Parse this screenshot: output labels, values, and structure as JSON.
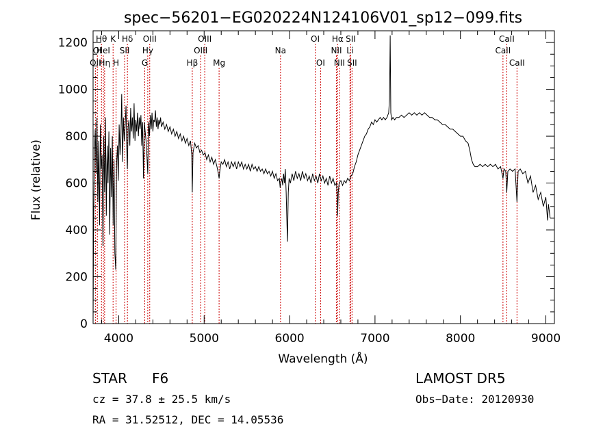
{
  "chart_data": {
    "type": "line",
    "title": "spec−56201−EG020224N124106V01_sp12−099.fits",
    "xlabel": "Wavelength (Å)",
    "ylabel": "Flux (relative)",
    "xlim": [
      3700,
      9100
    ],
    "ylim": [
      0,
      1250
    ],
    "xticks": [
      4000,
      5000,
      6000,
      7000,
      8000,
      9000
    ],
    "yticks": [
      0,
      200,
      400,
      600,
      800,
      1000,
      1200
    ],
    "grid": false,
    "line_color": "#000000",
    "marker_color": "#cc0000",
    "spectrum": [
      [
        3700,
        0
      ],
      [
        3705,
        380
      ],
      [
        3715,
        720
      ],
      [
        3725,
        830
      ],
      [
        3735,
        640
      ],
      [
        3745,
        880
      ],
      [
        3755,
        520
      ],
      [
        3765,
        780
      ],
      [
        3775,
        420
      ],
      [
        3785,
        850
      ],
      [
        3795,
        660
      ],
      [
        3805,
        720
      ],
      [
        3815,
        330
      ],
      [
        3825,
        800
      ],
      [
        3835,
        560
      ],
      [
        3845,
        880
      ],
      [
        3855,
        460
      ],
      [
        3865,
        760
      ],
      [
        3875,
        600
      ],
      [
        3885,
        820
      ],
      [
        3895,
        380
      ],
      [
        3905,
        750
      ],
      [
        3915,
        540
      ],
      [
        3925,
        800
      ],
      [
        3935,
        420
      ],
      [
        3945,
        700
      ],
      [
        3955,
        300
      ],
      [
        3965,
        230
      ],
      [
        3975,
        680
      ],
      [
        3985,
        760
      ],
      [
        3995,
        610
      ],
      [
        4005,
        850
      ],
      [
        4015,
        720
      ],
      [
        4025,
        790
      ],
      [
        4035,
        980
      ],
      [
        4045,
        690
      ],
      [
        4055,
        880
      ],
      [
        4065,
        780
      ],
      [
        4075,
        840
      ],
      [
        4085,
        930
      ],
      [
        4095,
        740
      ],
      [
        4101,
        660
      ],
      [
        4110,
        840
      ],
      [
        4120,
        870
      ],
      [
        4130,
        760
      ],
      [
        4140,
        920
      ],
      [
        4150,
        820
      ],
      [
        4160,
        880
      ],
      [
        4170,
        790
      ],
      [
        4180,
        940
      ],
      [
        4190,
        780
      ],
      [
        4200,
        870
      ],
      [
        4210,
        820
      ],
      [
        4220,
        900
      ],
      [
        4230,
        800
      ],
      [
        4240,
        880
      ],
      [
        4250,
        830
      ],
      [
        4260,
        890
      ],
      [
        4270,
        760
      ],
      [
        4280,
        860
      ],
      [
        4290,
        620
      ],
      [
        4300,
        860
      ],
      [
        4310,
        820
      ],
      [
        4320,
        780
      ],
      [
        4330,
        720
      ],
      [
        4340,
        640
      ],
      [
        4350,
        860
      ],
      [
        4360,
        800
      ],
      [
        4370,
        890
      ],
      [
        4380,
        830
      ],
      [
        4390,
        900
      ],
      [
        4400,
        820
      ],
      [
        4410,
        870
      ],
      [
        4420,
        860
      ],
      [
        4430,
        910
      ],
      [
        4440,
        840
      ],
      [
        4450,
        880
      ],
      [
        4460,
        830
      ],
      [
        4470,
        870
      ],
      [
        4480,
        850
      ],
      [
        4490,
        880
      ],
      [
        4500,
        840
      ],
      [
        4520,
        860
      ],
      [
        4540,
        830
      ],
      [
        4560,
        850
      ],
      [
        4580,
        820
      ],
      [
        4600,
        840
      ],
      [
        4620,
        810
      ],
      [
        4640,
        830
      ],
      [
        4660,
        800
      ],
      [
        4680,
        820
      ],
      [
        4700,
        790
      ],
      [
        4720,
        810
      ],
      [
        4740,
        780
      ],
      [
        4760,
        800
      ],
      [
        4780,
        770
      ],
      [
        4800,
        790
      ],
      [
        4820,
        760
      ],
      [
        4840,
        780
      ],
      [
        4855,
        720
      ],
      [
        4861,
        560
      ],
      [
        4870,
        730
      ],
      [
        4890,
        770
      ],
      [
        4910,
        750
      ],
      [
        4930,
        760
      ],
      [
        4950,
        730
      ],
      [
        4970,
        740
      ],
      [
        4990,
        720
      ],
      [
        5010,
        730
      ],
      [
        5030,
        700
      ],
      [
        5050,
        720
      ],
      [
        5070,
        690
      ],
      [
        5090,
        710
      ],
      [
        5110,
        680
      ],
      [
        5130,
        700
      ],
      [
        5150,
        670
      ],
      [
        5167,
        640
      ],
      [
        5175,
        620
      ],
      [
        5183,
        650
      ],
      [
        5200,
        690
      ],
      [
        5220,
        680
      ],
      [
        5240,
        700
      ],
      [
        5260,
        670
      ],
      [
        5280,
        690
      ],
      [
        5300,
        660
      ],
      [
        5320,
        690
      ],
      [
        5340,
        670
      ],
      [
        5360,
        690
      ],
      [
        5380,
        660
      ],
      [
        5400,
        690
      ],
      [
        5420,
        670
      ],
      [
        5440,
        690
      ],
      [
        5460,
        660
      ],
      [
        5480,
        680
      ],
      [
        5500,
        660
      ],
      [
        5520,
        680
      ],
      [
        5540,
        650
      ],
      [
        5560,
        680
      ],
      [
        5580,
        660
      ],
      [
        5600,
        670
      ],
      [
        5620,
        650
      ],
      [
        5640,
        670
      ],
      [
        5660,
        650
      ],
      [
        5680,
        660
      ],
      [
        5700,
        640
      ],
      [
        5720,
        660
      ],
      [
        5740,
        640
      ],
      [
        5760,
        650
      ],
      [
        5780,
        630
      ],
      [
        5800,
        650
      ],
      [
        5820,
        620
      ],
      [
        5840,
        640
      ],
      [
        5860,
        610
      ],
      [
        5880,
        620
      ],
      [
        5890,
        580
      ],
      [
        5896,
        600
      ],
      [
        5910,
        620
      ],
      [
        5920,
        590
      ],
      [
        5930,
        640
      ],
      [
        5940,
        600
      ],
      [
        5950,
        660
      ],
      [
        5960,
        560
      ],
      [
        5970,
        420
      ],
      [
        5975,
        350
      ],
      [
        5985,
        560
      ],
      [
        5995,
        620
      ],
      [
        6010,
        600
      ],
      [
        6030,
        640
      ],
      [
        6050,
        610
      ],
      [
        6070,
        650
      ],
      [
        6090,
        620
      ],
      [
        6110,
        640
      ],
      [
        6130,
        610
      ],
      [
        6150,
        650
      ],
      [
        6170,
        620
      ],
      [
        6190,
        640
      ],
      [
        6210,
        610
      ],
      [
        6230,
        630
      ],
      [
        6250,
        600
      ],
      [
        6270,
        640
      ],
      [
        6290,
        610
      ],
      [
        6310,
        630
      ],
      [
        6330,
        600
      ],
      [
        6350,
        640
      ],
      [
        6370,
        610
      ],
      [
        6390,
        630
      ],
      [
        6410,
        600
      ],
      [
        6430,
        620
      ],
      [
        6450,
        590
      ],
      [
        6470,
        630
      ],
      [
        6490,
        600
      ],
      [
        6510,
        620
      ],
      [
        6530,
        590
      ],
      [
        6550,
        600
      ],
      [
        6560,
        520
      ],
      [
        6563,
        460
      ],
      [
        6570,
        560
      ],
      [
        6580,
        600
      ],
      [
        6600,
        610
      ],
      [
        6620,
        590
      ],
      [
        6640,
        610
      ],
      [
        6660,
        600
      ],
      [
        6680,
        620
      ],
      [
        6700,
        610
      ],
      [
        6720,
        630
      ],
      [
        6740,
        640
      ],
      [
        6760,
        670
      ],
      [
        6780,
        690
      ],
      [
        6800,
        720
      ],
      [
        6820,
        740
      ],
      [
        6840,
        760
      ],
      [
        6860,
        780
      ],
      [
        6880,
        800
      ],
      [
        6900,
        810
      ],
      [
        6920,
        830
      ],
      [
        6940,
        840
      ],
      [
        6960,
        860
      ],
      [
        6980,
        850
      ],
      [
        7000,
        870
      ],
      [
        7020,
        860
      ],
      [
        7040,
        870
      ],
      [
        7060,
        880
      ],
      [
        7080,
        870
      ],
      [
        7100,
        880
      ],
      [
        7120,
        870
      ],
      [
        7140,
        880
      ],
      [
        7160,
        900
      ],
      [
        7170,
        960
      ],
      [
        7178,
        1230
      ],
      [
        7185,
        900
      ],
      [
        7195,
        870
      ],
      [
        7210,
        880
      ],
      [
        7230,
        870
      ],
      [
        7250,
        880
      ],
      [
        7280,
        880
      ],
      [
        7310,
        890
      ],
      [
        7340,
        880
      ],
      [
        7370,
        890
      ],
      [
        7400,
        900
      ],
      [
        7430,
        890
      ],
      [
        7460,
        900
      ],
      [
        7490,
        890
      ],
      [
        7520,
        900
      ],
      [
        7550,
        890
      ],
      [
        7580,
        900
      ],
      [
        7610,
        890
      ],
      [
        7640,
        880
      ],
      [
        7670,
        880
      ],
      [
        7700,
        870
      ],
      [
        7730,
        870
      ],
      [
        7760,
        860
      ],
      [
        7790,
        850
      ],
      [
        7820,
        850
      ],
      [
        7850,
        840
      ],
      [
        7880,
        830
      ],
      [
        7910,
        830
      ],
      [
        7940,
        820
      ],
      [
        7970,
        810
      ],
      [
        8000,
        800
      ],
      [
        8030,
        800
      ],
      [
        8060,
        780
      ],
      [
        8090,
        770
      ],
      [
        8110,
        740
      ],
      [
        8130,
        700
      ],
      [
        8150,
        680
      ],
      [
        8170,
        670
      ],
      [
        8200,
        670
      ],
      [
        8230,
        680
      ],
      [
        8260,
        670
      ],
      [
        8290,
        680
      ],
      [
        8320,
        670
      ],
      [
        8350,
        680
      ],
      [
        8380,
        670
      ],
      [
        8410,
        680
      ],
      [
        8440,
        660
      ],
      [
        8470,
        670
      ],
      [
        8498,
        620
      ],
      [
        8510,
        660
      ],
      [
        8530,
        650
      ],
      [
        8542,
        560
      ],
      [
        8555,
        650
      ],
      [
        8580,
        660
      ],
      [
        8610,
        650
      ],
      [
        8640,
        660
      ],
      [
        8662,
        520
      ],
      [
        8675,
        650
      ],
      [
        8700,
        660
      ],
      [
        8730,
        640
      ],
      [
        8760,
        650
      ],
      [
        8790,
        600
      ],
      [
        8820,
        630
      ],
      [
        8850,
        560
      ],
      [
        8880,
        590
      ],
      [
        8910,
        530
      ],
      [
        8940,
        560
      ],
      [
        8970,
        500
      ],
      [
        9000,
        540
      ],
      [
        9020,
        440
      ],
      [
        9030,
        510
      ],
      [
        9050,
        450
      ]
    ],
    "lines": [
      {
        "label": "OII",
        "wavelength": 3727,
        "row": 3
      },
      {
        "label": "Hθ",
        "wavelength": 3798,
        "row": 1
      },
      {
        "label": "OI",
        "wavelength": 3750,
        "row": 2
      },
      {
        "label": "HeI",
        "wavelength": 3820,
        "row": 2
      },
      {
        "label": "Hη",
        "wavelength": 3835,
        "row": 3
      },
      {
        "label": "K",
        "wavelength": 3934,
        "row": 1
      },
      {
        "label": "H",
        "wavelength": 3969,
        "row": 3
      },
      {
        "label": "SII",
        "wavelength": 4069,
        "row": 2
      },
      {
        "label": "Hδ",
        "wavelength": 4102,
        "row": 1
      },
      {
        "label": "G",
        "wavelength": 4305,
        "row": 3
      },
      {
        "label": "Hγ",
        "wavelength": 4340,
        "row": 2
      },
      {
        "label": "OIII",
        "wavelength": 4363,
        "row": 1
      },
      {
        "label": "Hβ",
        "wavelength": 4861,
        "row": 3
      },
      {
        "label": "OIII",
        "wavelength": 4959,
        "row": 2
      },
      {
        "label": "OIII",
        "wavelength": 5007,
        "row": 1
      },
      {
        "label": "Mg",
        "wavelength": 5175,
        "row": 3
      },
      {
        "label": "Na",
        "wavelength": 5894,
        "row": 2
      },
      {
        "label": "OI",
        "wavelength": 6300,
        "row": 1
      },
      {
        "label": "OI",
        "wavelength": 6363,
        "row": 3
      },
      {
        "label": "NII",
        "wavelength": 6548,
        "row": 2
      },
      {
        "label": "Hα",
        "wavelength": 6563,
        "row": 1
      },
      {
        "label": "NII",
        "wavelength": 6583,
        "row": 3
      },
      {
        "label": "Li",
        "wavelength": 6707,
        "row": 2
      },
      {
        "label": "SII",
        "wavelength": 6716,
        "row": 1
      },
      {
        "label": "SII",
        "wavelength": 6731,
        "row": 3
      },
      {
        "label": "CaII",
        "wavelength": 8498,
        "row": 2
      },
      {
        "label": "CaII",
        "wavelength": 8542,
        "row": 1
      },
      {
        "label": "CaII",
        "wavelength": 8662,
        "row": 3
      }
    ]
  },
  "info": {
    "class_label": "STAR",
    "subclass": "F6",
    "survey": "LAMOST DR5",
    "cz": "cz = 37.8 ± 25.5 km/s",
    "obs_date": "Obs−Date: 20120930",
    "radec": "RA =  31.52512, DEC =  14.05536"
  }
}
